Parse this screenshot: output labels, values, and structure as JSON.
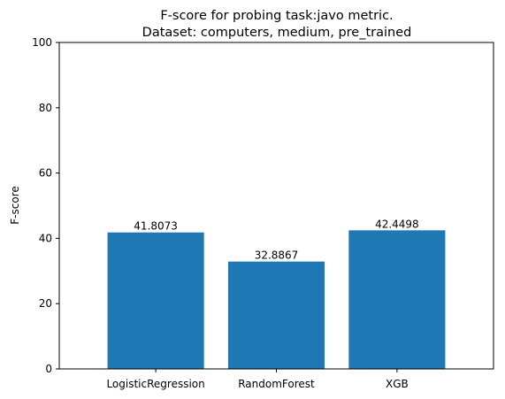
{
  "chart_data": {
    "type": "bar",
    "title_line1": "F-score for probing task:javo metric.",
    "title_line2": "Dataset: computers, medium, pre_trained",
    "xlabel": "",
    "ylabel": "F-score",
    "categories": [
      "LogisticRegression",
      "RandomForest",
      "XGB"
    ],
    "values": [
      41.8073,
      32.8867,
      42.4498
    ],
    "value_labels": [
      "41.8073",
      "32.8867",
      "42.4498"
    ],
    "ylim": [
      0,
      100
    ],
    "yticks": [
      0,
      20,
      40,
      60,
      80,
      100
    ],
    "ytick_labels": [
      "0",
      "20",
      "40",
      "60",
      "80",
      "100"
    ],
    "bar_color": "#1f77b4",
    "grid": false,
    "legend": "none"
  }
}
